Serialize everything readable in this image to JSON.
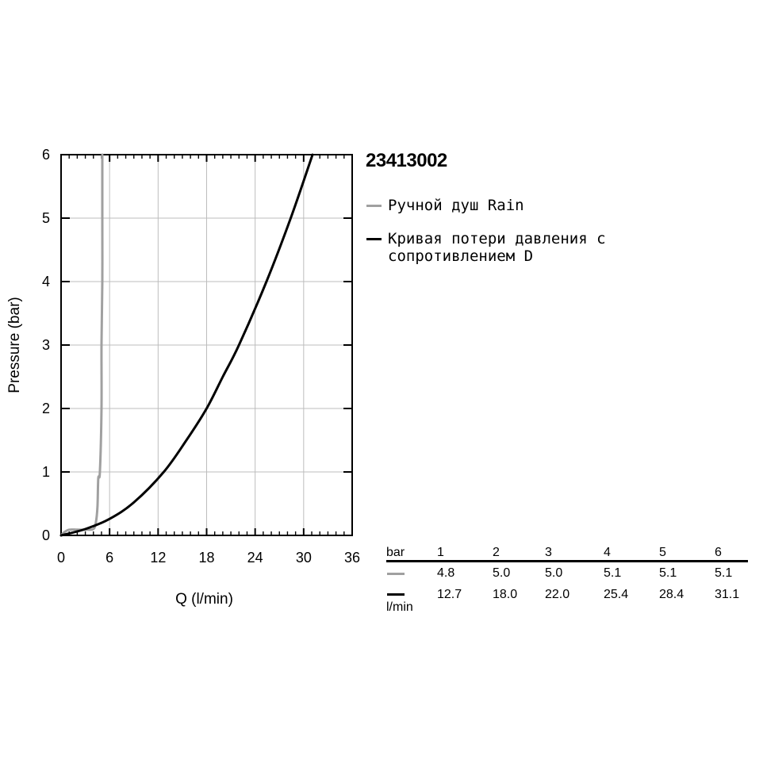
{
  "model_title": "23413002",
  "legend": [
    {
      "label": "Ручной душ Rain",
      "color": "#a0a0a0"
    },
    {
      "label": "Кривая потери давления с\nсопротивлением D",
      "color": "#000000"
    }
  ],
  "chart_data": {
    "type": "line",
    "title": "",
    "xlabel": "Q (l/min)",
    "ylabel": "Pressure (bar)",
    "xlim": [
      0,
      36
    ],
    "ylim": [
      0,
      6
    ],
    "x_ticks": [
      "0",
      "6",
      "12",
      "18",
      "24",
      "30",
      "36"
    ],
    "y_ticks": [
      "0",
      "1",
      "2",
      "3",
      "4",
      "5",
      "6"
    ],
    "grid": true,
    "series": [
      {
        "name": "Ручной душ Rain",
        "color": "#a0a0a0",
        "points": [
          [
            0,
            0
          ],
          [
            0.4,
            0.05
          ],
          [
            1.0,
            0.09
          ],
          [
            2.0,
            0.09
          ],
          [
            3.2,
            0.09
          ],
          [
            4.0,
            0.1
          ],
          [
            4.3,
            0.2
          ],
          [
            4.5,
            0.45
          ],
          [
            4.6,
            0.9
          ],
          [
            4.8,
            1
          ],
          [
            5.0,
            2
          ],
          [
            5.0,
            3
          ],
          [
            5.1,
            4
          ],
          [
            5.1,
            5
          ],
          [
            5.1,
            6
          ]
        ]
      },
      {
        "name": "Кривая потери давления с сопротивлением D",
        "color": "#000000",
        "points": [
          [
            0,
            0
          ],
          [
            3.0,
            0.1
          ],
          [
            6.0,
            0.26
          ],
          [
            9.0,
            0.52
          ],
          [
            12.7,
            1
          ],
          [
            15.5,
            1.5
          ],
          [
            18.0,
            2
          ],
          [
            20.0,
            2.5
          ],
          [
            22.0,
            3
          ],
          [
            25.4,
            4
          ],
          [
            28.4,
            5
          ],
          [
            31.1,
            6
          ]
        ]
      }
    ]
  },
  "table": {
    "header_label": "bar",
    "unit_label": "l/min",
    "pressures": [
      "1",
      "2",
      "3",
      "4",
      "5",
      "6"
    ],
    "rows": [
      {
        "color": "#a0a0a0",
        "values": [
          "4.8",
          "5.0",
          "5.0",
          "5.1",
          "5.1",
          "5.1"
        ]
      },
      {
        "color": "#000000",
        "values": [
          "12.7",
          "18.0",
          "22.0",
          "25.4",
          "28.4",
          "31.1"
        ]
      }
    ]
  }
}
